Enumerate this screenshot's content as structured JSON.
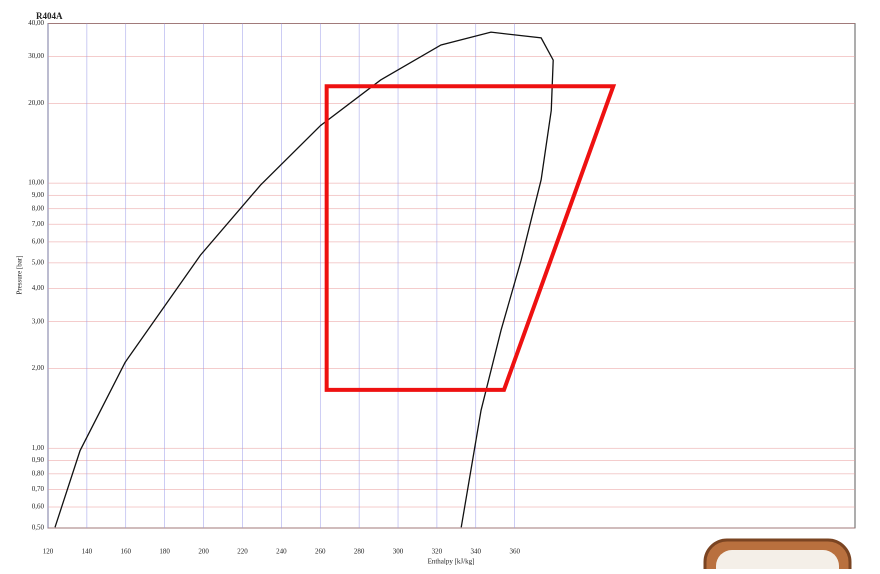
{
  "chart_data": {
    "type": "line",
    "title": "R404A",
    "x_label": "Enthalpy [kJ/kg]",
    "y_label": "Pressure [bar]",
    "log_y": true,
    "grid": true,
    "xlim": [
      120,
      535
    ],
    "xticks": [
      120,
      140,
      160,
      180,
      200,
      220,
      240,
      260,
      280,
      300,
      320,
      340,
      360
    ],
    "ylim": [
      0.5,
      40
    ],
    "yticks": [
      {
        "value": 40,
        "label": "40,00"
      },
      {
        "value": 30,
        "label": "30,00"
      },
      {
        "value": 20,
        "label": "20,00"
      },
      {
        "value": 10,
        "label": "10,00"
      },
      {
        "value": 9,
        "label": "9,00"
      },
      {
        "value": 8,
        "label": "8,00"
      },
      {
        "value": 7,
        "label": "7,00"
      },
      {
        "value": 6,
        "label": "6,00"
      },
      {
        "value": 5,
        "label": "5,00"
      },
      {
        "value": 4,
        "label": "4,00"
      },
      {
        "value": 3,
        "label": "3,00"
      },
      {
        "value": 2,
        "label": "2,00"
      },
      {
        "value": 1,
        "label": "1,00"
      },
      {
        "value": 0.9,
        "label": "0,90"
      },
      {
        "value": 0.8,
        "label": "0,80"
      },
      {
        "value": 0.7,
        "label": "0,70"
      },
      {
        "value": 0.6,
        "label": "0,60"
      },
      {
        "value": 0.5,
        "label": "0,50"
      }
    ],
    "series": [
      {
        "color": "#111111",
        "x": [
          123.6,
          136.5,
          159.7,
          198.4,
          229.3,
          260.2,
          291.1,
          322.1,
          347.8,
          373.6,
          379.8,
          378.8,
          373.6,
          363.3,
          353.0,
          342.7,
          332.5
        ],
        "values": [
          0.503,
          0.98,
          2.11,
          5.35,
          9.83,
          16.5,
          24.5,
          33.2,
          37.1,
          35.3,
          29.1,
          18.8,
          10.3,
          5.12,
          2.79,
          1.39,
          0.503
        ]
      },
      {
        "color": "#ee1111",
        "closed": true,
        "x": [
          263.3,
          410.7,
          354.5,
          263.3
        ],
        "values": [
          23.2,
          23.2,
          1.66,
          1.66
        ]
      }
    ]
  }
}
